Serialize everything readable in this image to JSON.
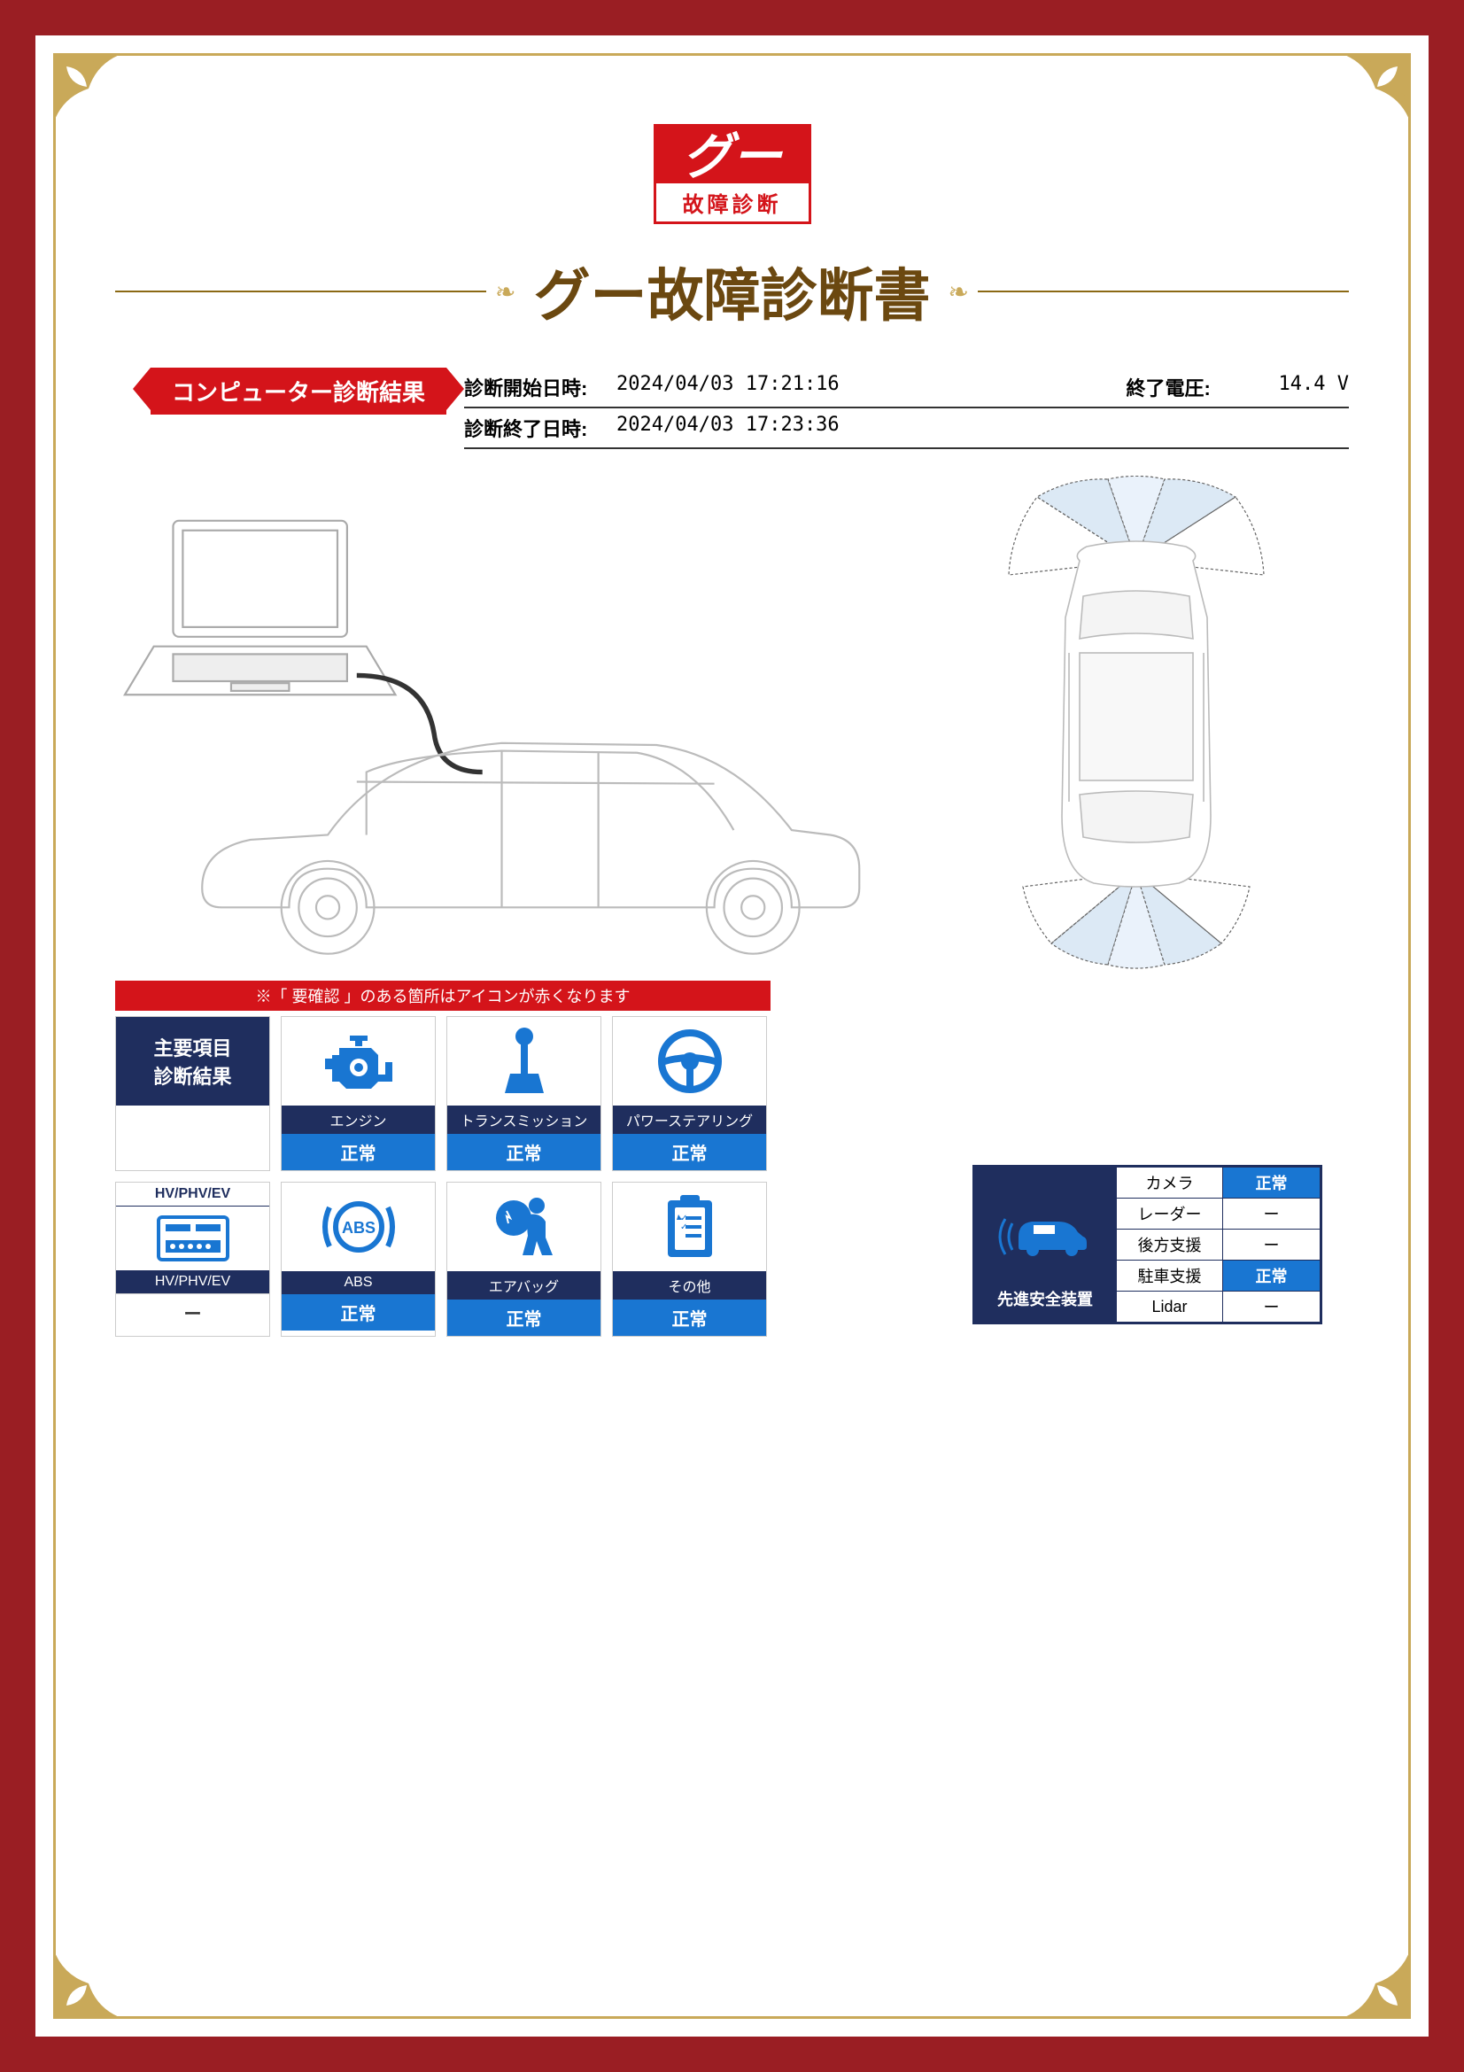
{
  "logo": {
    "brand": "グー",
    "subtitle": "故障診断"
  },
  "title": "グー故障診断書",
  "section_header": "コンピューター診断結果",
  "meta": {
    "start_label": "診断開始日時:",
    "start_value": "2024/04/03 17:21:16",
    "end_label": "診断終了日時:",
    "end_value": "2024/04/03 17:23:36",
    "voltage_label": "終了電圧:",
    "voltage_value": "14.4 V"
  },
  "diag_note": "※「 要確認 」のある箇所はアイコンが赤くなります",
  "tiles": {
    "header1": "主要項目\n診断結果",
    "row1": [
      {
        "label": "エンジン",
        "status": "正常",
        "status_type": "normal",
        "icon": "engine"
      },
      {
        "label": "トランスミッション",
        "status": "正常",
        "status_type": "normal",
        "icon": "transmission"
      },
      {
        "label": "パワーステアリング",
        "status": "正常",
        "status_type": "normal",
        "icon": "steering"
      }
    ],
    "row2": [
      {
        "top_label": "HV/PHV/EV",
        "label": "HV/PHV/EV",
        "status": "ー",
        "status_type": "blank",
        "icon": "hv"
      },
      {
        "label": "ABS",
        "status": "正常",
        "status_type": "normal",
        "icon": "abs"
      },
      {
        "label": "エアバッグ",
        "status": "正常",
        "status_type": "normal",
        "icon": "airbag"
      },
      {
        "label": "その他",
        "status": "正常",
        "status_type": "normal",
        "icon": "clipboard"
      }
    ]
  },
  "safety": {
    "header": "先進安全装置",
    "rows": [
      {
        "name": "カメラ",
        "value": "正常",
        "type": "normal"
      },
      {
        "name": "レーダー",
        "value": "ー",
        "type": "dash"
      },
      {
        "name": "後方支援",
        "value": "ー",
        "type": "dash"
      },
      {
        "name": "駐車支援",
        "value": "正常",
        "type": "normal"
      },
      {
        "name": "Lidar",
        "value": "ー",
        "type": "dash"
      }
    ]
  },
  "colors": {
    "frame": "#9a1e23",
    "gold": "#c9a959",
    "red": "#d4141a",
    "navy": "#1f2e5e",
    "blue": "#1976d2",
    "title_brown": "#6b4810"
  }
}
